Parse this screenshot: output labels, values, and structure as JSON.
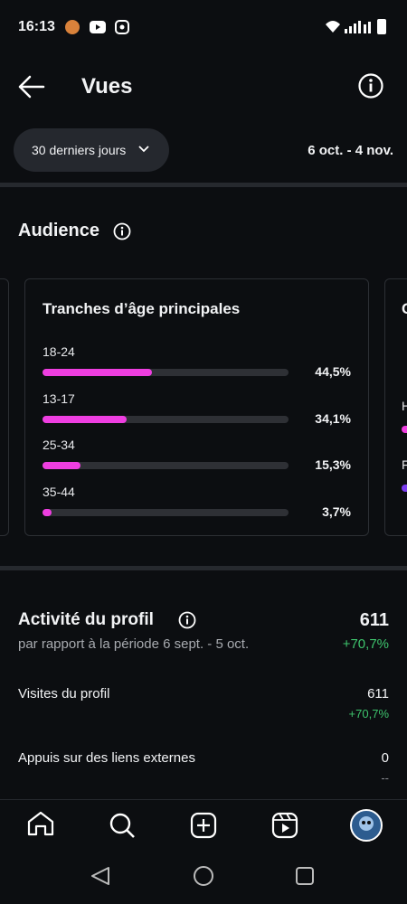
{
  "status_bar": {
    "time": "16:13"
  },
  "header": {
    "title": "Vues"
  },
  "filter": {
    "period": "30 derniers jours",
    "date_range": "6 oct. - 4 nov."
  },
  "audience": {
    "title": "Audience",
    "age_card": {
      "title": "Tranches d’âge principales",
      "items": [
        {
          "label": "18-24",
          "value": 44.5,
          "value_label": "44,5%"
        },
        {
          "label": "13-17",
          "value": 34.1,
          "value_label": "34,1%"
        },
        {
          "label": "25-34",
          "value": 15.3,
          "value_label": "15,3%"
        },
        {
          "label": "35-44",
          "value": 3.7,
          "value_label": "3,7%"
        }
      ]
    },
    "next_card": {
      "title": "C",
      "rows": [
        "H",
        "F"
      ]
    }
  },
  "profile_activity": {
    "title": "Activité du profil",
    "total": 611,
    "comparison": "par rapport à la période 6 sept. - 5 oct.",
    "change": "+70,7%",
    "rows": [
      {
        "label": "Visites du profil",
        "value": 611,
        "change": "+70,7%"
      },
      {
        "label": "Appuis sur des liens externes",
        "value": 0,
        "change": "--"
      }
    ]
  }
}
